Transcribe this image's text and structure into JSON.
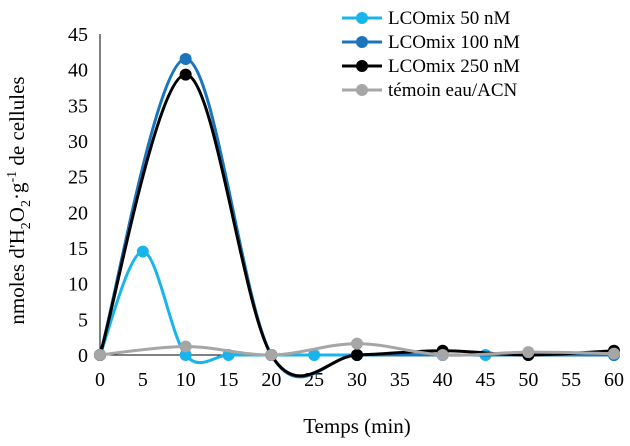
{
  "chart_data": {
    "type": "line",
    "smooth": true,
    "xlabel": "Temps (min)",
    "ylabel_parts": [
      "nmoles d'H",
      "2",
      "O",
      "2",
      "·g",
      "-1",
      " de cellules"
    ],
    "x_ticks": [
      0,
      5,
      10,
      15,
      20,
      25,
      30,
      35,
      40,
      45,
      50,
      55,
      60
    ],
    "y_ticks": [
      0,
      5,
      10,
      15,
      20,
      25,
      30,
      35,
      40,
      45
    ],
    "xlim": [
      0,
      60
    ],
    "ylim": [
      0,
      45
    ],
    "grid": false,
    "legend_position": "top-right",
    "series": [
      {
        "name": "LCOmix 50 nM",
        "color": "#19B4EC",
        "points": [
          [
            0,
            0
          ],
          [
            5,
            14.5
          ],
          [
            10,
            0
          ],
          [
            15,
            0
          ],
          [
            20,
            0
          ],
          [
            25,
            0
          ],
          [
            30,
            0
          ],
          [
            40,
            0
          ],
          [
            45,
            0
          ],
          [
            50,
            0
          ],
          [
            60,
            0
          ]
        ]
      },
      {
        "name": "LCOmix 100 nM",
        "color": "#1B75BC",
        "points": [
          [
            0,
            0
          ],
          [
            10,
            41.5
          ],
          [
            20,
            0
          ],
          [
            30,
            0
          ],
          [
            40,
            0
          ],
          [
            50,
            0
          ],
          [
            60,
            0
          ]
        ]
      },
      {
        "name": "LCOmix 250 nM",
        "color": "#000000",
        "points": [
          [
            0,
            0
          ],
          [
            10,
            39.3
          ],
          [
            20,
            0
          ],
          [
            30,
            0
          ],
          [
            40,
            0.6
          ],
          [
            50,
            0
          ],
          [
            60,
            0.6
          ]
        ]
      },
      {
        "name": "témoin eau/ACN",
        "color": "#A6A6A6",
        "points": [
          [
            0,
            0
          ],
          [
            10,
            1.2
          ],
          [
            20,
            0
          ],
          [
            30,
            1.6
          ],
          [
            40,
            0
          ],
          [
            50,
            0.4
          ],
          [
            60,
            0.2
          ]
        ]
      }
    ]
  }
}
